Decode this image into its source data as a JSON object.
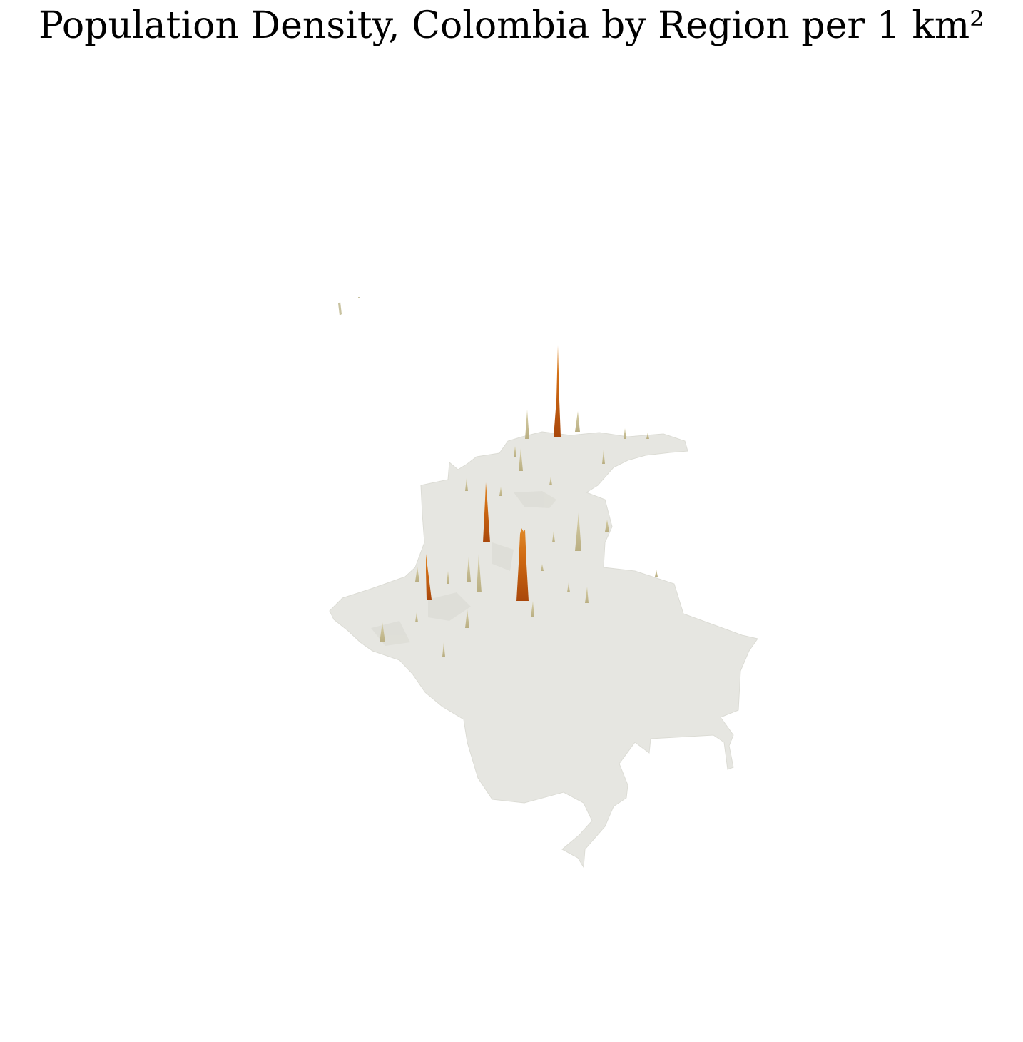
{
  "title": "Population Density, Colombia by Region per 1 km²",
  "colors": {
    "land": "#e6e6e1",
    "land_edge": "#dcdcd5",
    "spike_low": "#c7bd91",
    "spike_high": "#b8520e",
    "spike_mid": "#cd7a1e"
  }
}
